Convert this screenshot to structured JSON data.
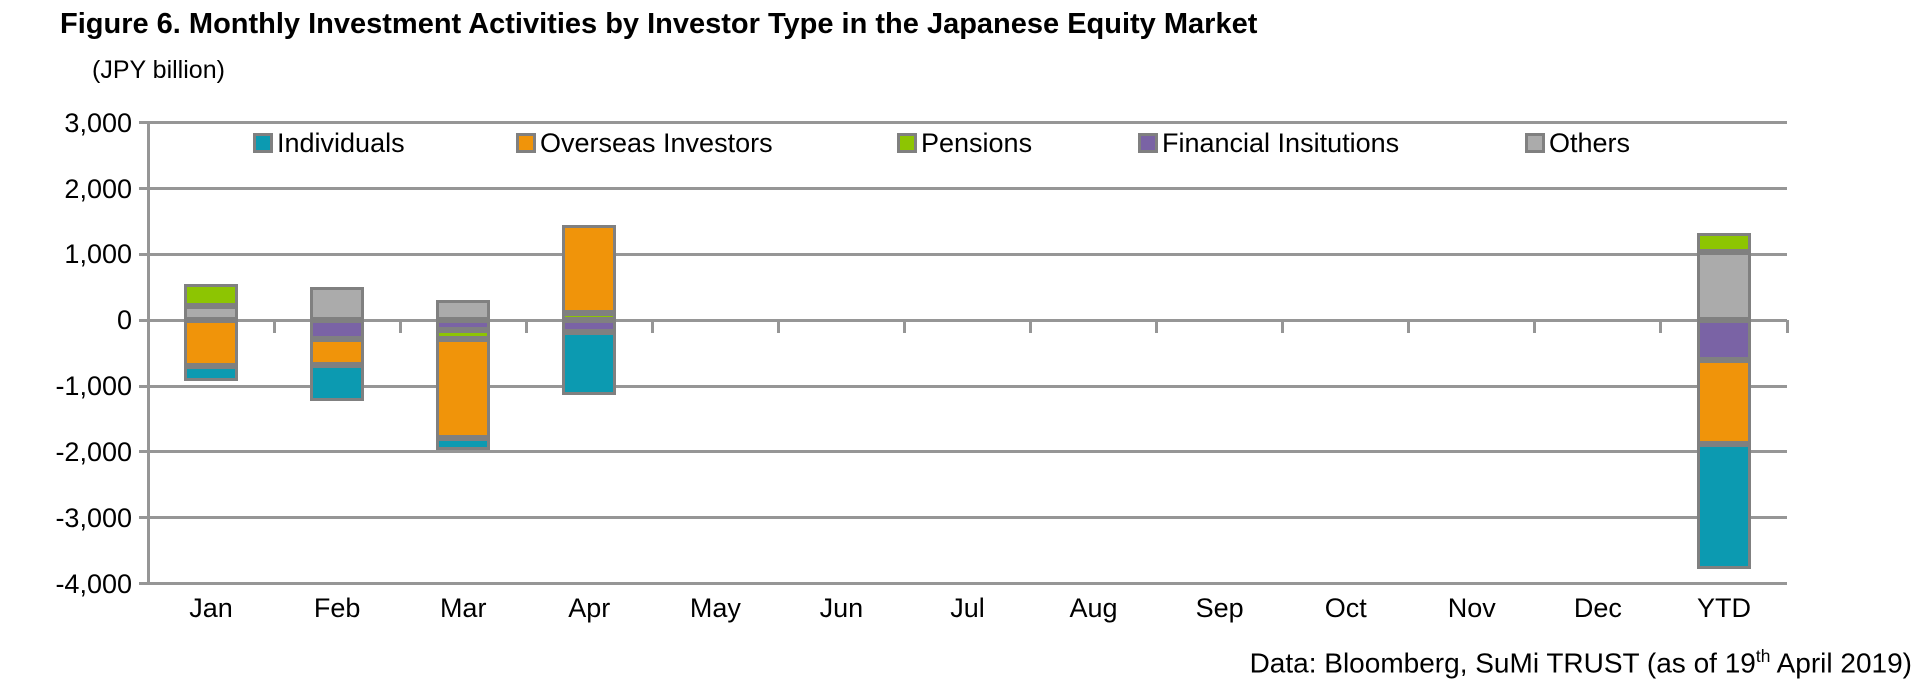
{
  "title": "Figure 6. Monthly Investment Activities by Investor Type in the Japanese Equity Market",
  "unit_label": "(JPY billion)",
  "footer": {
    "prefix": "Data: Bloomberg, SuMi TRUST (as of 19",
    "superscript": "th",
    "suffix": " April 2019)"
  },
  "chart_data": {
    "type": "bar",
    "stacked": true,
    "title": "Figure 6. Monthly Investment Activities by Investor Type in the Japanese Equity Market",
    "ylabel": "(JPY billion)",
    "xlabel": "",
    "categories": [
      "Jan",
      "Feb",
      "Mar",
      "Apr",
      "May",
      "Jun",
      "Jul",
      "Aug",
      "Sep",
      "Oct",
      "Nov",
      "Dec",
      "YTD"
    ],
    "series": [
      {
        "name": "Individuals",
        "color": "#0C9AB1",
        "values": [
          -230,
          -540,
          -180,
          -950,
          0,
          0,
          0,
          0,
          0,
          0,
          0,
          0,
          -1900
        ]
      },
      {
        "name": "Overseas Investors",
        "color": "#F0940A",
        "values": [
          -700,
          -400,
          -1500,
          1330,
          0,
          0,
          0,
          0,
          0,
          0,
          0,
          0,
          -1270
        ]
      },
      {
        "name": "Pensions",
        "color": "#8DC502",
        "values": [
          330,
          0,
          -140,
          110,
          0,
          0,
          0,
          0,
          0,
          0,
          0,
          0,
          300
        ]
      },
      {
        "name": "Financial Insitutions",
        "color": "#7A63A5",
        "values": [
          0,
          -280,
          -150,
          -180,
          0,
          0,
          0,
          0,
          0,
          0,
          0,
          0,
          -610
        ]
      },
      {
        "name": "Others",
        "color": "#ABABAB",
        "values": [
          220,
          500,
          310,
          0,
          0,
          0,
          0,
          0,
          0,
          0,
          0,
          0,
          1030
        ]
      }
    ],
    "stack_order_from_zero": [
      "Others",
      "Financial Insitutions",
      "Pensions",
      "Overseas Investors",
      "Individuals"
    ],
    "y_ticks": [
      3000,
      2000,
      1000,
      0,
      -1000,
      -2000,
      -3000,
      -4000
    ],
    "y_tick_labels": [
      "3,000",
      "2,000",
      "1,000",
      "0",
      "-1,000",
      "-2,000",
      "-3,000",
      "-4,000"
    ],
    "ylim": [
      -4000,
      3000
    ],
    "grid": true,
    "legend_position": "top-inside",
    "colors": {
      "grid": "#969696",
      "axis": "#808080",
      "bar_border": "#808080",
      "text": "#000000"
    }
  }
}
